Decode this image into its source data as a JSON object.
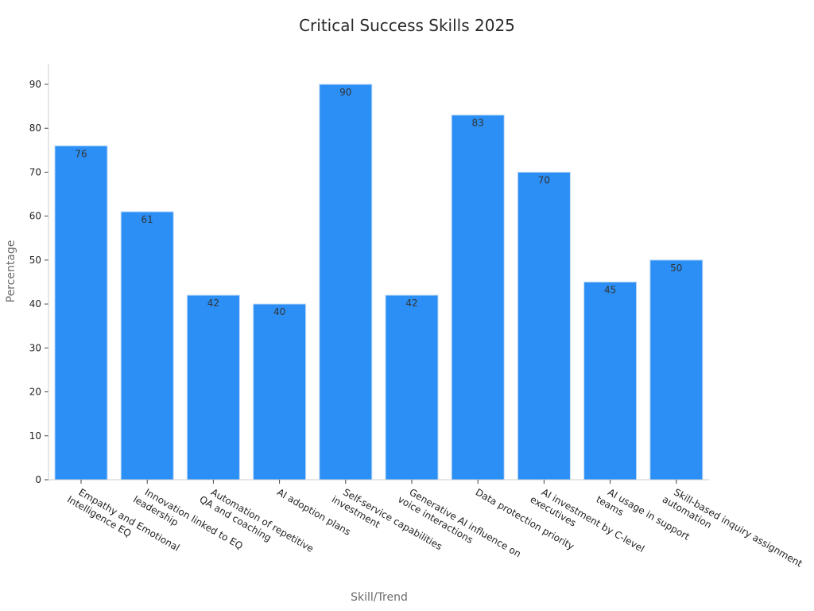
{
  "chart_data": {
    "type": "bar",
    "title": "Critical Success Skills 2025",
    "xlabel": "Skill/Trend",
    "ylabel": "Percentage",
    "ylim": [
      0,
      95
    ],
    "yticks": [
      0,
      10,
      20,
      30,
      40,
      50,
      60,
      70,
      80,
      90
    ],
    "grid": false,
    "categories": [
      [
        "Empathy and Emotional",
        "Intelligence EQ"
      ],
      [
        "Innovation linked to EQ",
        "leadership"
      ],
      [
        "Automation of repetitive",
        "QA and coaching"
      ],
      [
        "AI adoption plans"
      ],
      [
        "Self-service capabilities",
        "investment"
      ],
      [
        "Generative AI influence on",
        "voice interactions"
      ],
      [
        "Data protection priority"
      ],
      [
        "AI investment by C-level",
        "executives"
      ],
      [
        "AI usage in support",
        "teams"
      ],
      [
        "Skill-based inquiry assignment",
        "automation"
      ]
    ],
    "values": [
      76,
      61,
      42,
      40,
      90,
      42,
      83,
      70,
      45,
      50
    ],
    "colors": {
      "bar": "#2b8ff5",
      "bar_edge": "#bcd8f8",
      "axis": "#cccccc"
    }
  }
}
